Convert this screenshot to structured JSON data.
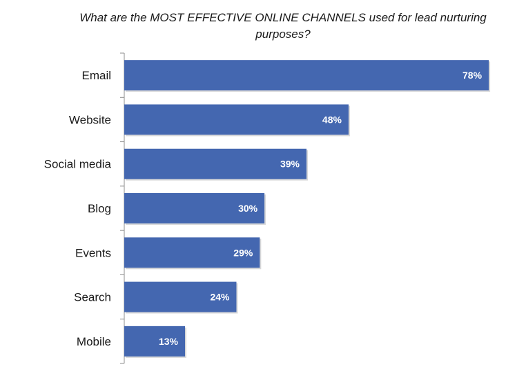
{
  "chart_data": {
    "type": "bar",
    "orientation": "horizontal",
    "title": "What are the MOST EFFECTIVE ONLINE CHANNELS used for lead nurturing purposes?",
    "xlabel": "",
    "ylabel": "",
    "categories": [
      "Email",
      "Website",
      "Social media",
      "Blog",
      "Events",
      "Search",
      "Mobile"
    ],
    "values": [
      78,
      48,
      39,
      30,
      29,
      24,
      13
    ],
    "data_labels": [
      "78%",
      "48%",
      "39%",
      "30%",
      "29%",
      "24%",
      "13%"
    ],
    "unit": "%",
    "xlim": [
      0,
      80
    ],
    "grid": false,
    "legend": "none",
    "colors": {
      "bar": "#4467b0",
      "bar_shadow": "#bfbfbf",
      "axis": "#8c8c8c",
      "label_text": "#ffffff"
    }
  }
}
